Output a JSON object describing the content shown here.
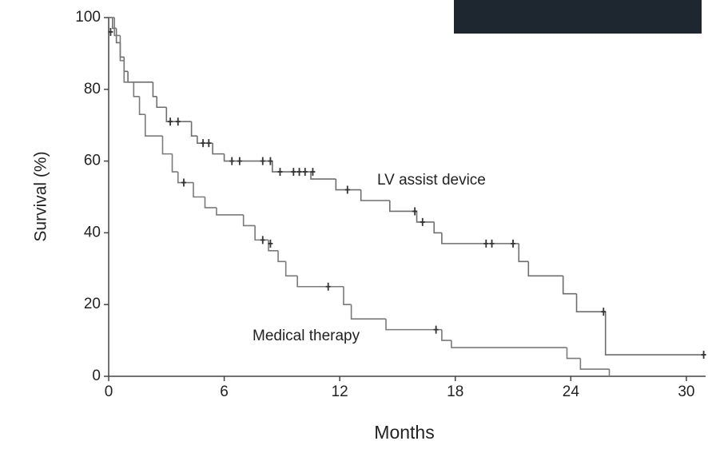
{
  "chart_data": {
    "type": "step",
    "xlabel": "Months",
    "ylabel": "Survival (%)",
    "xlim": [
      0,
      31
    ],
    "ylim": [
      0,
      100
    ],
    "xticks": [
      0,
      6,
      12,
      18,
      24,
      30
    ],
    "yticks": [
      0,
      20,
      40,
      60,
      80,
      100
    ],
    "series": [
      {
        "name": "LV assist device",
        "color": "#6e6e6e",
        "x": [
          0,
          0.2,
          0.4,
          0.6,
          0.8,
          1.0,
          2.3,
          2.5,
          3.0,
          4.3,
          4.6,
          5.4,
          6.0,
          8.5,
          10.5,
          11.8,
          13.1,
          14.6,
          16.0,
          16.9,
          17.3,
          21.3,
          21.8,
          23.6,
          24.3,
          25.8,
          31
        ],
        "values": [
          100,
          97,
          93,
          89,
          85,
          82,
          78,
          75,
          71,
          67,
          65,
          62,
          60,
          57,
          55,
          52,
          49,
          46,
          43,
          40,
          37,
          32,
          28,
          23,
          18,
          6,
          6
        ],
        "censored": {
          "x": [
            3.2,
            3.6,
            4.9,
            5.2,
            6.4,
            6.8,
            8.0,
            8.4,
            8.9,
            9.6,
            9.9,
            10.2,
            10.6,
            12.4,
            15.9,
            16.3,
            19.6,
            19.9,
            21.0,
            25.7,
            30.9
          ],
          "values": [
            71,
            71,
            65,
            65,
            60,
            60,
            60,
            60,
            57,
            57,
            57,
            57,
            57,
            52,
            46,
            43,
            37,
            37,
            37,
            18,
            6
          ]
        }
      },
      {
        "name": "Medical therapy",
        "color": "#7a7a7a",
        "x": [
          0,
          0.3,
          0.6,
          0.8,
          1.3,
          1.6,
          1.9,
          2.8,
          3.3,
          3.6,
          4.4,
          5.0,
          5.6,
          7.0,
          7.6,
          8.3,
          8.8,
          9.2,
          9.8,
          12.2,
          12.6,
          14.4,
          17.3,
          17.8,
          23.8,
          24.5,
          26.0
        ],
        "values": [
          100,
          95,
          88,
          82,
          78,
          73,
          67,
          62,
          57,
          54,
          50,
          47,
          45,
          42,
          38,
          35,
          32,
          28,
          25,
          20,
          16,
          13,
          10,
          8,
          5,
          2,
          0
        ],
        "censored": {
          "x": [
            0.1,
            3.9,
            8.0,
            8.4,
            11.4,
            17.0
          ],
          "values": [
            96,
            54,
            38,
            37,
            25,
            13
          ]
        }
      }
    ]
  }
}
